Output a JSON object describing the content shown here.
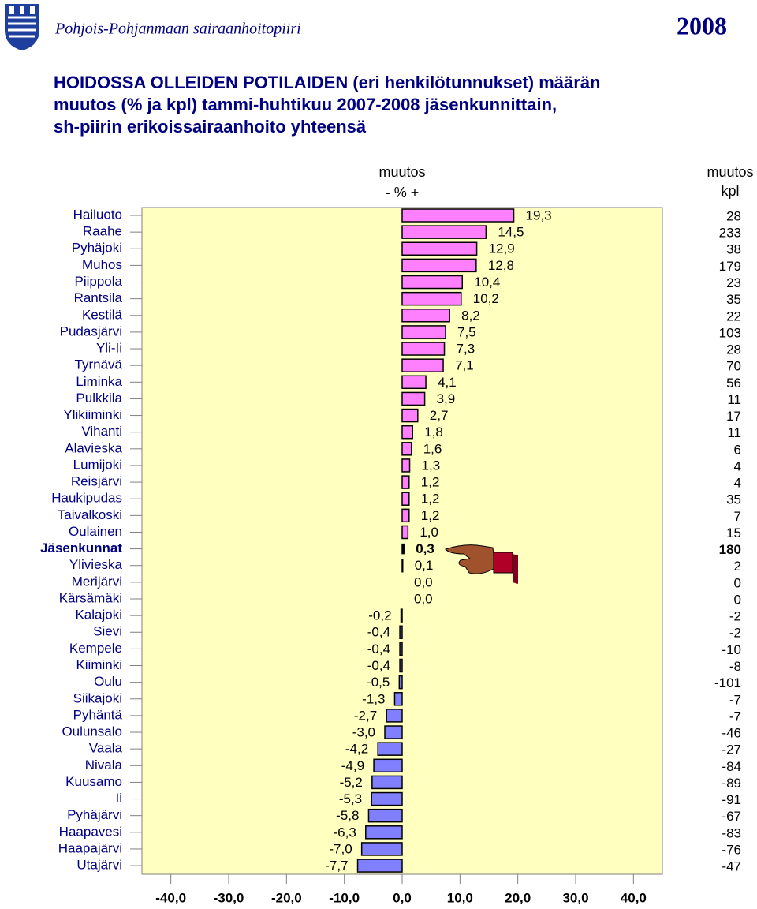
{
  "header": {
    "organization": "Pohjois-Pohjanmaan sairaanhoitopiiri",
    "year": "2008"
  },
  "chart_data": {
    "type": "hbar",
    "title": [
      "HOIDOSSA OLLEIDEN POTILAIDEN (eri henkilötunnukset) määrän",
      "muutos (% ja kpl) tammi-huhtikuu 2007-2008 jäsenkunnittain,",
      "sh-piirin erikoissairaanhoito yhteensä"
    ],
    "axis_header": [
      "muutos",
      "-  %  +"
    ],
    "kpl_header": [
      "muutos",
      "kpl"
    ],
    "categories": [
      "Hailuoto",
      "Raahe",
      "Pyhäjoki",
      "Muhos",
      "Piippola",
      "Rantsila",
      "Kestilä",
      "Pudasjärvi",
      "Yli-Ii",
      "Tyrnävä",
      "Liminka",
      "Pulkkila",
      "Ylikiiminki",
      "Vihanti",
      "Alavieska",
      "Lumijoki",
      "Reisjärvi",
      "Haukipudas",
      "Taivalkoski",
      "Oulainen",
      "Jäsenkunnat",
      "Ylivieska",
      "Merijärvi",
      "Kärsämäki",
      "Kalajoki",
      "Sievi",
      "Kempele",
      "Kiiminki",
      "Oulu",
      "Siikajoki",
      "Pyhäntä",
      "Oulunsalo",
      "Vaala",
      "Nivala",
      "Kuusamo",
      "Ii",
      "Pyhäjärvi",
      "Haapavesi",
      "Haapajärvi",
      "Utajärvi"
    ],
    "values": [
      19.3,
      14.5,
      12.9,
      12.8,
      10.4,
      10.2,
      8.2,
      7.5,
      7.3,
      7.1,
      4.1,
      3.9,
      2.7,
      1.8,
      1.6,
      1.3,
      1.2,
      1.2,
      1.2,
      1.0,
      0.3,
      0.1,
      0.0,
      0.0,
      -0.2,
      -0.4,
      -0.4,
      -0.4,
      -0.5,
      -1.3,
      -2.7,
      -3.0,
      -4.2,
      -4.9,
      -5.2,
      -5.3,
      -5.8,
      -6.3,
      -7.0,
      -7.7
    ],
    "value_labels": [
      "19,3",
      "14,5",
      "12,9",
      "12,8",
      "10,4",
      "10,2",
      "8,2",
      "7,5",
      "7,3",
      "7,1",
      "4,1",
      "3,9",
      "2,7",
      "1,8",
      "1,6",
      "1,3",
      "1,2",
      "1,2",
      "1,2",
      "1,0",
      "0,3",
      "0,1",
      "0,0",
      "0,0",
      "-0,2",
      "-0,4",
      "-0,4",
      "-0,4",
      "-0,5",
      "-1,3",
      "-2,7",
      "-3,0",
      "-4,2",
      "-4,9",
      "-5,2",
      "-5,3",
      "-5,8",
      "-6,3",
      "-7,0",
      "-7,7"
    ],
    "kpl": [
      28,
      233,
      38,
      179,
      23,
      35,
      22,
      103,
      28,
      70,
      56,
      11,
      17,
      11,
      6,
      4,
      4,
      35,
      7,
      15,
      180,
      2,
      0,
      0,
      -2,
      -2,
      -10,
      -8,
      -101,
      -7,
      -7,
      -46,
      -27,
      -84,
      -89,
      -91,
      -67,
      -83,
      -76,
      -47
    ],
    "xlim": [
      -45,
      45
    ],
    "xticks": [
      {
        "value": -40,
        "label": "-40,0"
      },
      {
        "value": -30,
        "label": "-30,0"
      },
      {
        "value": -20,
        "label": "-20,0"
      },
      {
        "value": -10,
        "label": "-10,0"
      },
      {
        "value": 0,
        "label": "0,0"
      },
      {
        "value": 10,
        "label": "10,0"
      },
      {
        "value": 20,
        "label": "20,0"
      },
      {
        "value": 30,
        "label": "30,0"
      },
      {
        "value": 40,
        "label": "40,0"
      }
    ],
    "positive_color": "#ff80ff",
    "negative_color": "#8080ff",
    "highlight_color": "#000000",
    "highlight_index": 20,
    "kpl_positive_color": "#ff0000",
    "kpl_negative_color": "#0000cc",
    "kpl_highlight_color": "#cc0000",
    "background": "#ffffc0"
  }
}
